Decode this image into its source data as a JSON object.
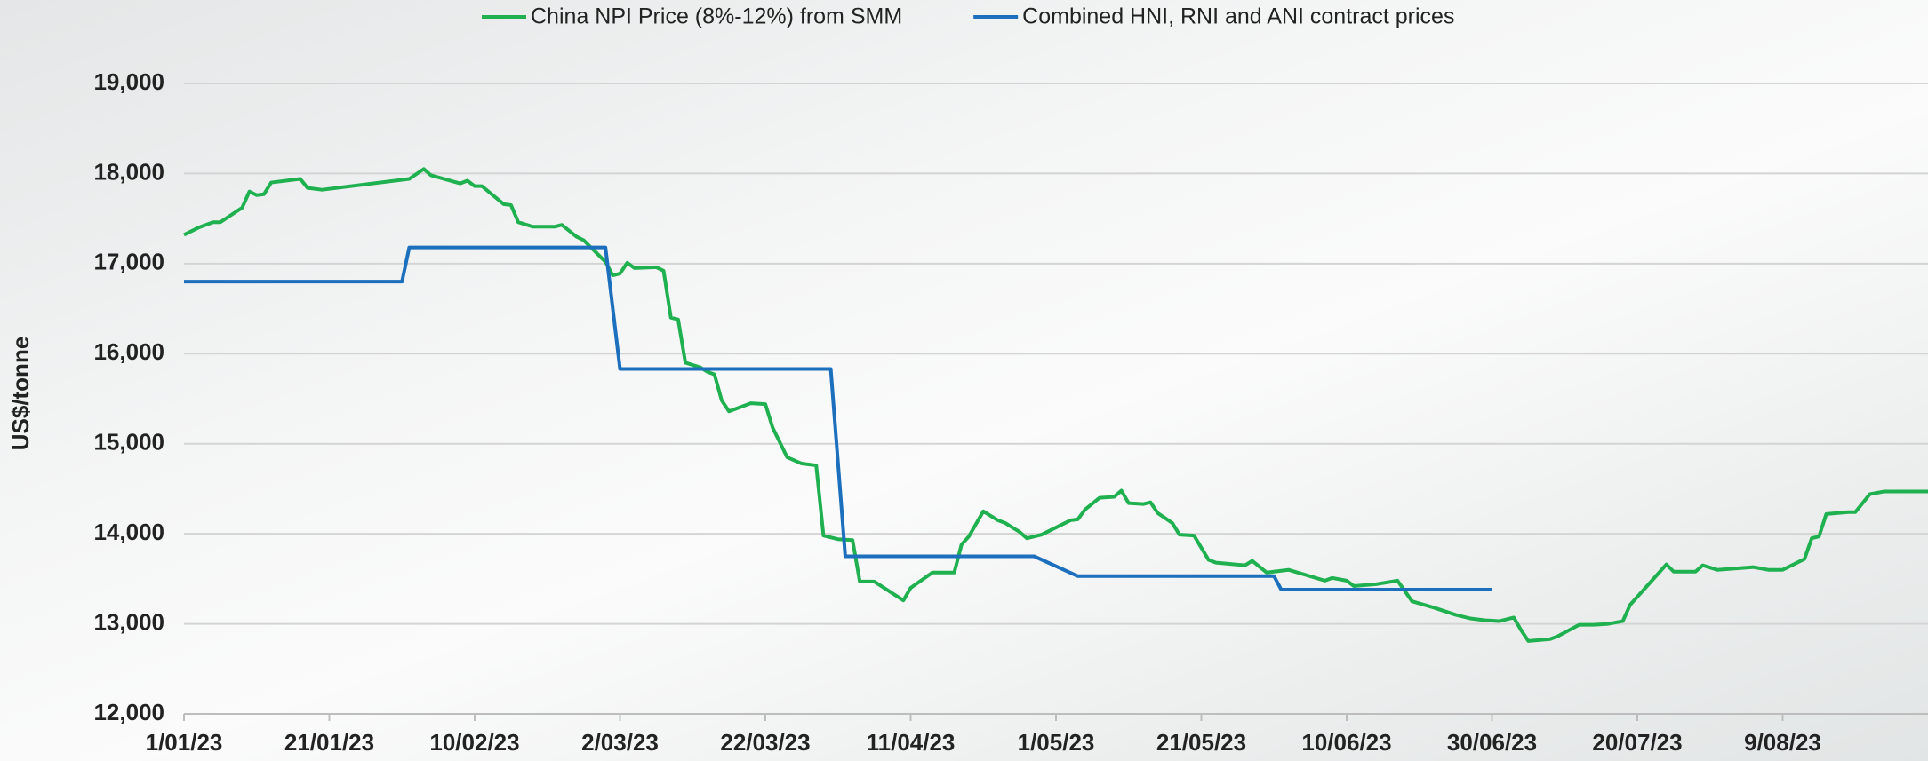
{
  "chart_data": {
    "type": "line",
    "y_label": "US$/tonne",
    "ylim": [
      12000,
      19000
    ],
    "yticks": [
      {
        "value": 12000,
        "label": "12,000"
      },
      {
        "value": 13000,
        "label": "13,000"
      },
      {
        "value": 14000,
        "label": "14,000"
      },
      {
        "value": 15000,
        "label": "15,000"
      },
      {
        "value": 16000,
        "label": "16,000"
      },
      {
        "value": 17000,
        "label": "17,000"
      },
      {
        "value": 18000,
        "label": "18,000"
      },
      {
        "value": 19000,
        "label": "19,000"
      }
    ],
    "xlim": [
      "2023-01-01",
      "2023-08-29"
    ],
    "xticks": [
      {
        "value": "2023-01-01",
        "label": "1/01/23"
      },
      {
        "value": "2023-01-21",
        "label": "21/01/23"
      },
      {
        "value": "2023-02-10",
        "label": "10/02/23"
      },
      {
        "value": "2023-03-02",
        "label": "2/03/23"
      },
      {
        "value": "2023-03-22",
        "label": "22/03/23"
      },
      {
        "value": "2023-04-11",
        "label": "11/04/23"
      },
      {
        "value": "2023-05-01",
        "label": "1/05/23"
      },
      {
        "value": "2023-05-21",
        "label": "21/05/23"
      },
      {
        "value": "2023-06-10",
        "label": "10/06/23"
      },
      {
        "value": "2023-06-30",
        "label": "30/06/23"
      },
      {
        "value": "2023-07-20",
        "label": "20/07/23"
      },
      {
        "value": "2023-08-09",
        "label": "9/08/23"
      }
    ],
    "grid": true,
    "series": [
      {
        "name": "China NPI Price (8%-12%) from SMM",
        "color": "#1fb04f",
        "x": [
          "2023-01-01",
          "2023-01-03",
          "2023-01-05",
          "2023-01-06",
          "2023-01-09",
          "2023-01-10",
          "2023-01-11",
          "2023-01-12",
          "2023-01-13",
          "2023-01-17",
          "2023-01-18",
          "2023-01-20",
          "2023-02-01",
          "2023-02-03",
          "2023-02-04",
          "2023-02-08",
          "2023-02-09",
          "2023-02-10",
          "2023-02-11",
          "2023-02-14",
          "2023-02-15",
          "2023-02-16",
          "2023-02-18",
          "2023-02-21",
          "2023-02-22",
          "2023-02-24",
          "2023-02-25",
          "2023-02-28",
          "2023-03-01",
          "2023-03-02",
          "2023-03-03",
          "2023-03-04",
          "2023-03-07",
          "2023-03-08",
          "2023-03-09",
          "2023-03-10",
          "2023-03-11",
          "2023-03-13",
          "2023-03-14",
          "2023-03-15",
          "2023-03-16",
          "2023-03-17",
          "2023-03-20",
          "2023-03-22",
          "2023-03-23",
          "2023-03-25",
          "2023-03-27",
          "2023-03-29",
          "2023-03-30",
          "2023-04-01",
          "2023-04-03",
          "2023-04-04",
          "2023-04-06",
          "2023-04-10",
          "2023-04-11",
          "2023-04-14",
          "2023-04-15",
          "2023-04-17",
          "2023-04-18",
          "2023-04-19",
          "2023-04-21",
          "2023-04-23",
          "2023-04-24",
          "2023-04-26",
          "2023-04-27",
          "2023-04-29",
          "2023-05-03",
          "2023-05-04",
          "2023-05-05",
          "2023-05-07",
          "2023-05-09",
          "2023-05-10",
          "2023-05-11",
          "2023-05-13",
          "2023-05-14",
          "2023-05-15",
          "2023-05-17",
          "2023-05-18",
          "2023-05-20",
          "2023-05-22",
          "2023-05-23",
          "2023-05-27",
          "2023-05-28",
          "2023-05-30",
          "2023-06-02",
          "2023-06-07",
          "2023-06-08",
          "2023-06-10",
          "2023-06-11",
          "2023-06-14",
          "2023-06-17",
          "2023-06-19",
          "2023-06-22",
          "2023-06-25",
          "2023-06-27",
          "2023-06-29",
          "2023-07-01",
          "2023-07-03",
          "2023-07-04",
          "2023-07-05",
          "2023-07-08",
          "2023-07-09",
          "2023-07-12",
          "2023-07-14",
          "2023-07-16",
          "2023-07-18",
          "2023-07-19",
          "2023-07-21",
          "2023-07-23",
          "2023-07-24",
          "2023-07-25",
          "2023-07-28",
          "2023-07-29",
          "2023-07-31",
          "2023-08-05",
          "2023-08-07",
          "2023-08-09",
          "2023-08-12",
          "2023-08-13",
          "2023-08-14",
          "2023-08-15",
          "2023-08-18",
          "2023-08-19",
          "2023-08-21",
          "2023-08-23",
          "2023-08-29"
        ],
        "values": [
          17320,
          17400,
          17460,
          17460,
          17620,
          17800,
          17760,
          17770,
          17900,
          17940,
          17840,
          17820,
          17940,
          18050,
          17980,
          17890,
          17920,
          17860,
          17860,
          17660,
          17650,
          17460,
          17410,
          17410,
          17430,
          17300,
          17260,
          17020,
          16870,
          16890,
          17010,
          16950,
          16960,
          16920,
          16400,
          16380,
          15900,
          15850,
          15800,
          15770,
          15480,
          15360,
          15450,
          15440,
          15180,
          14850,
          14780,
          14760,
          13980,
          13940,
          13930,
          13470,
          13470,
          13260,
          13400,
          13570,
          13570,
          13570,
          13880,
          13970,
          14250,
          14150,
          14120,
          14020,
          13950,
          13990,
          14150,
          14160,
          14270,
          14400,
          14410,
          14480,
          14340,
          14330,
          14350,
          14230,
          14120,
          13990,
          13980,
          13710,
          13680,
          13650,
          13700,
          13570,
          13600,
          13480,
          13510,
          13480,
          13420,
          13440,
          13480,
          13250,
          13180,
          13100,
          13060,
          13040,
          13030,
          13070,
          12930,
          12810,
          12830,
          12860,
          12990,
          12990,
          13000,
          13030,
          13210,
          13390,
          13570,
          13660,
          13580,
          13580,
          13650,
          13600,
          13630,
          13600,
          13600,
          13720,
          13950,
          13970,
          14220,
          14240,
          14240,
          14440,
          14470,
          14470
        ]
      },
      {
        "name": "Combined HNI, RNI and ANI contract prices",
        "color": "#1c6fbd",
        "x": [
          "2023-01-01",
          "2023-01-31",
          "2023-02-01",
          "2023-02-28",
          "2023-03-02",
          "2023-03-31",
          "2023-04-02",
          "2023-04-28",
          "2023-05-04",
          "2023-05-31",
          "2023-06-01",
          "2023-06-30"
        ],
        "values": [
          16800,
          16800,
          17180,
          17180,
          15830,
          15830,
          13750,
          13750,
          13530,
          13530,
          13380,
          13380
        ]
      }
    ]
  }
}
